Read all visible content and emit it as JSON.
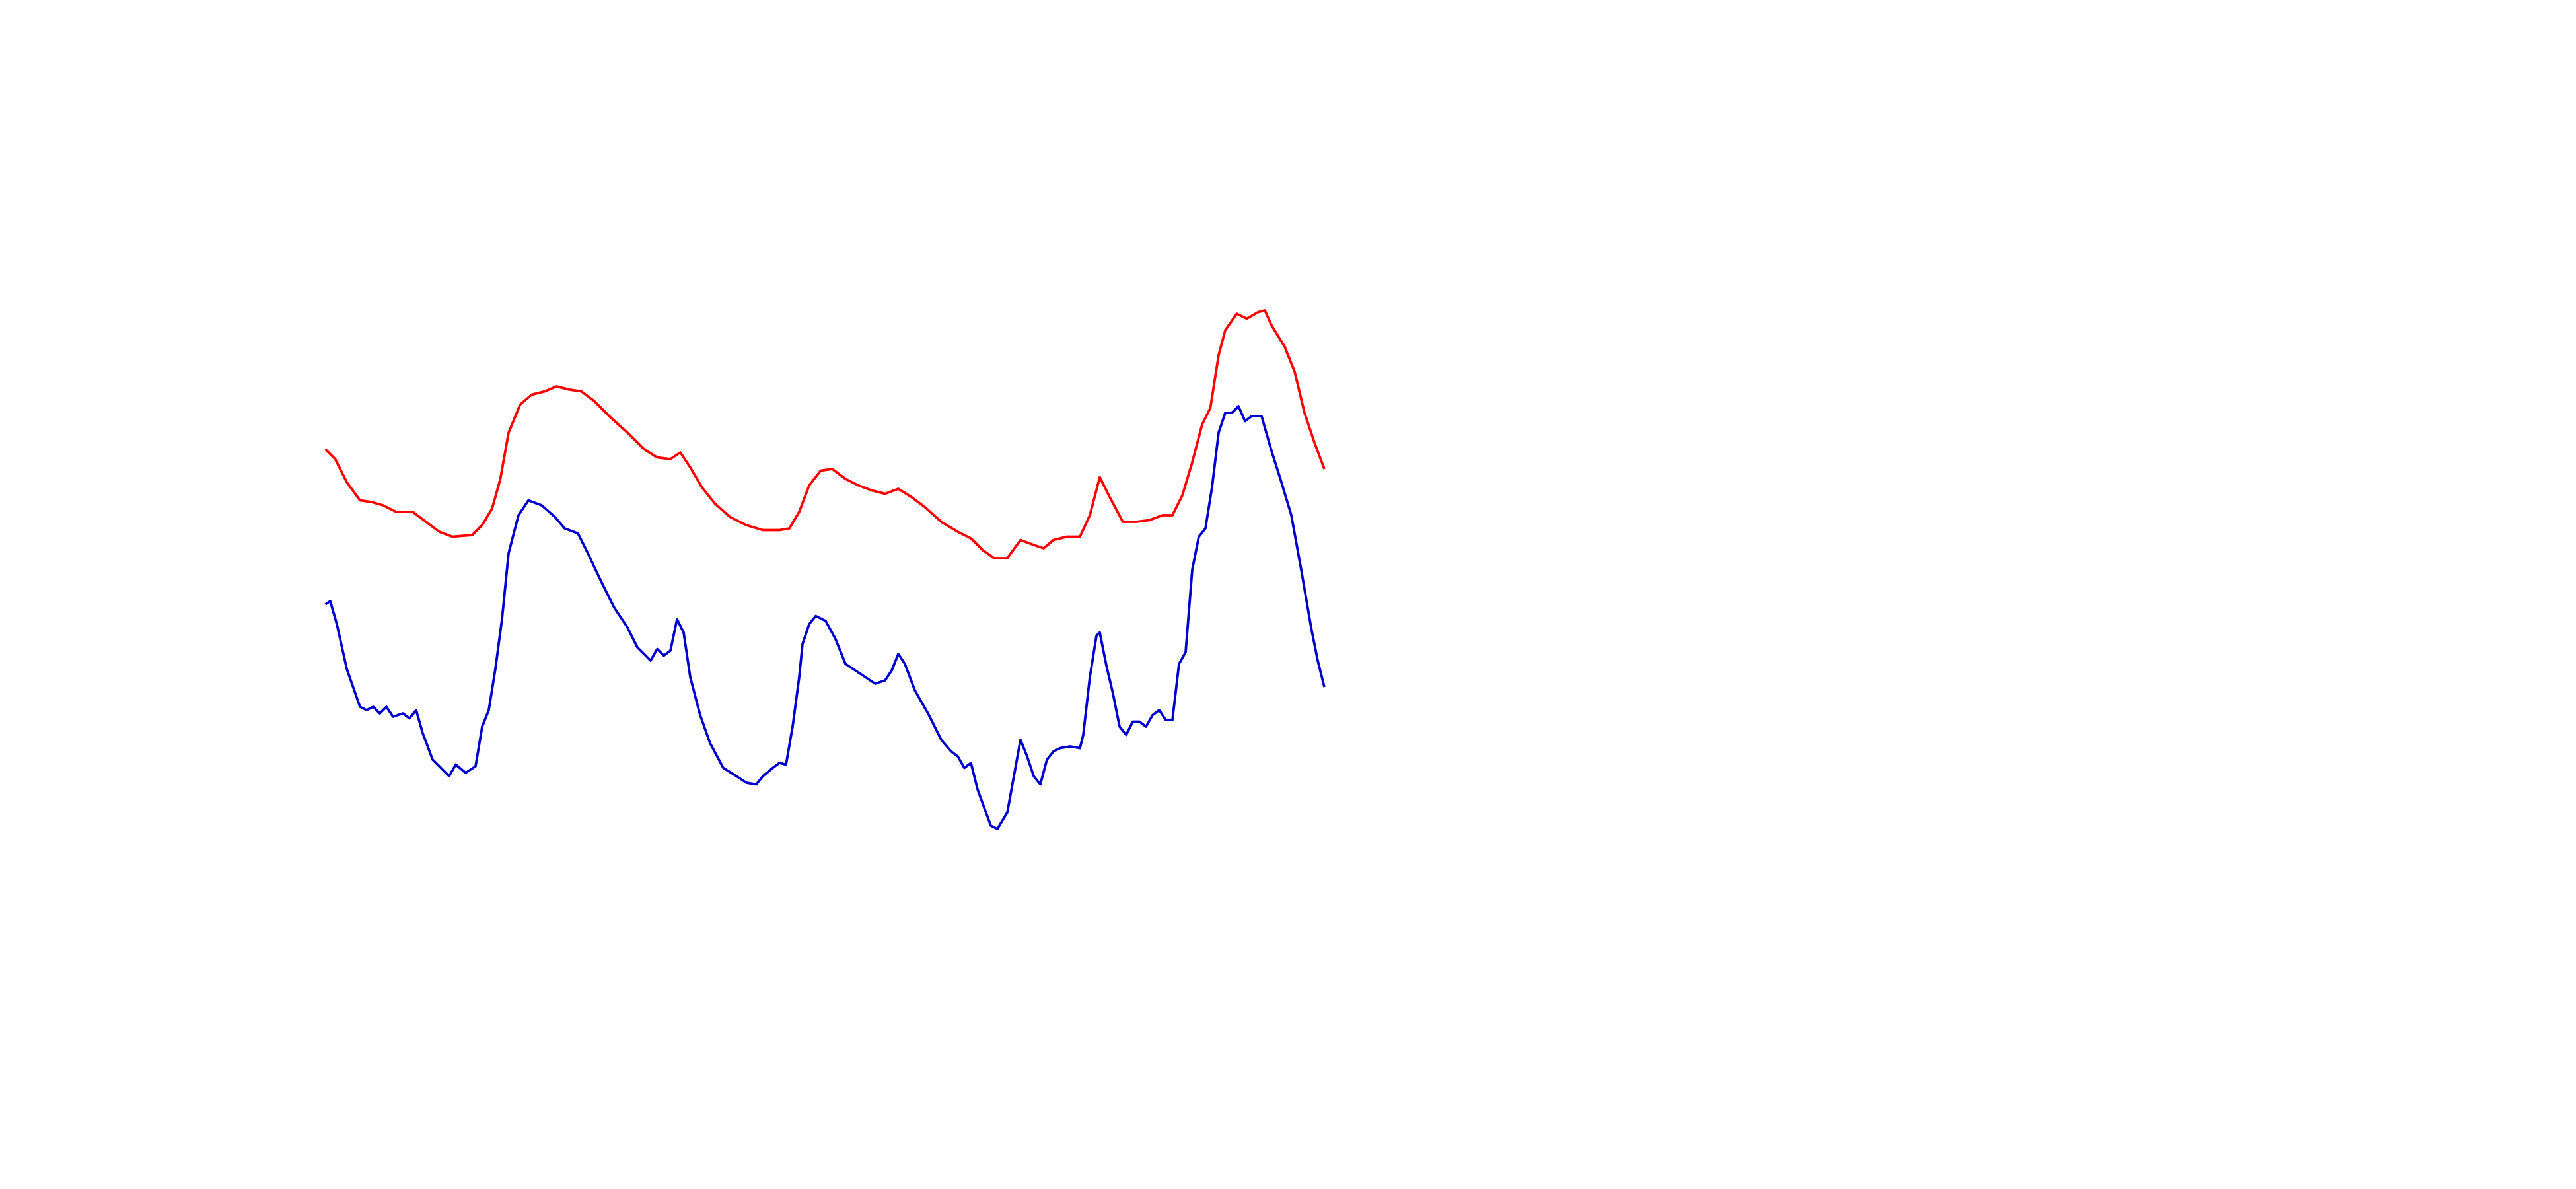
{
  "chart_data": {
    "type": "line",
    "xlim": [
      0,
      1560
    ],
    "ylim": [
      0,
      720
    ],
    "series": [
      {
        "color": "#ff0000",
        "x": [
          197,
          203,
          210,
          218,
          225,
          232,
          240,
          250,
          258,
          266,
          274,
          286,
          292,
          298,
          303,
          308,
          315,
          322,
          330,
          337,
          345,
          352,
          360,
          370,
          380,
          390,
          398,
          406,
          412,
          418,
          425,
          433,
          442,
          452,
          462,
          472,
          478,
          484,
          490,
          497,
          504,
          512,
          520,
          528,
          536,
          544,
          552,
          560,
          570,
          580,
          588,
          595,
          602,
          610,
          618,
          626,
          632,
          638,
          646,
          654,
          660,
          666,
          672,
          680,
          688,
          696,
          704,
          710,
          716,
          722,
          728,
          733,
          738,
          742,
          749,
          755,
          762,
          766,
          770,
          778,
          784,
          790,
          796,
          802
        ],
        "values": [
          448,
          442,
          428,
          417,
          416,
          414,
          410,
          410,
          404,
          398,
          395,
          396,
          402,
          412,
          430,
          458,
          475,
          481,
          483,
          486,
          484,
          483,
          477,
          467,
          458,
          448,
          443,
          442,
          446,
          437,
          425,
          415,
          407,
          402,
          399,
          399,
          400,
          410,
          426,
          435,
          436,
          430,
          426,
          423,
          421,
          424,
          419,
          413,
          404,
          398,
          394,
          387,
          382,
          382,
          393,
          390,
          388,
          393,
          395,
          395,
          408,
          431,
          419,
          404,
          404,
          405,
          408,
          408,
          420,
          440,
          463,
          473,
          505,
          520,
          530,
          527,
          531,
          532,
          523,
          510,
          495,
          470,
          452,
          436
        ]
      },
      {
        "color": "#0000cc",
        "x": [
          197,
          200,
          204,
          210,
          218,
          222,
          226,
          230,
          234,
          238,
          244,
          248,
          252,
          256,
          262,
          268,
          272,
          276,
          282,
          288,
          292,
          296,
          300,
          304,
          308,
          314,
          320,
          328,
          336,
          342,
          350,
          356,
          364,
          372,
          380,
          386,
          394,
          398,
          402,
          406,
          410,
          414,
          418,
          424,
          430,
          438,
          446,
          452,
          458,
          462,
          468,
          472,
          476,
          480,
          484,
          486,
          490,
          494,
          500,
          506,
          512,
          518,
          524,
          530,
          536,
          540,
          544,
          548,
          554,
          562,
          570,
          576,
          580,
          584,
          588,
          592,
          600,
          604,
          610,
          614,
          618,
          622,
          626,
          630,
          634,
          638,
          642,
          648,
          654,
          656,
          660,
          664,
          666,
          670,
          674,
          678,
          682,
          686,
          690,
          694,
          698,
          702,
          706,
          710,
          714,
          718,
          722,
          726,
          730,
          734,
          738,
          742,
          746,
          750,
          754,
          758,
          764,
          770,
          776,
          782,
          788,
          794,
          798,
          802
        ],
        "values": [
          354,
          356,
          342,
          315,
          292,
          290,
          292,
          288,
          292,
          286,
          288,
          285,
          290,
          276,
          260,
          254,
          250,
          257,
          252,
          256,
          280,
          290,
          315,
          345,
          385,
          408,
          417,
          414,
          407,
          400,
          397,
          385,
          368,
          352,
          340,
          328,
          320,
          327,
          323,
          326,
          345,
          337,
          310,
          287,
          270,
          255,
          250,
          246,
          245,
          250,
          255,
          258,
          257,
          280,
          310,
          330,
          342,
          347,
          344,
          333,
          318,
          314,
          310,
          306,
          308,
          314,
          324,
          318,
          302,
          288,
          272,
          265,
          262,
          255,
          258,
          242,
          220,
          218,
          228,
          250,
          272,
          262,
          250,
          245,
          260,
          265,
          267,
          268,
          267,
          275,
          310,
          335,
          337,
          317,
          300,
          280,
          275,
          283,
          283,
          280,
          287,
          290,
          284,
          284,
          318,
          325,
          375,
          395,
          400,
          425,
          458,
          470,
          470,
          474,
          465,
          468,
          468,
          447,
          428,
          408,
          375,
          340,
          320,
          304
        ]
      }
    ]
  }
}
